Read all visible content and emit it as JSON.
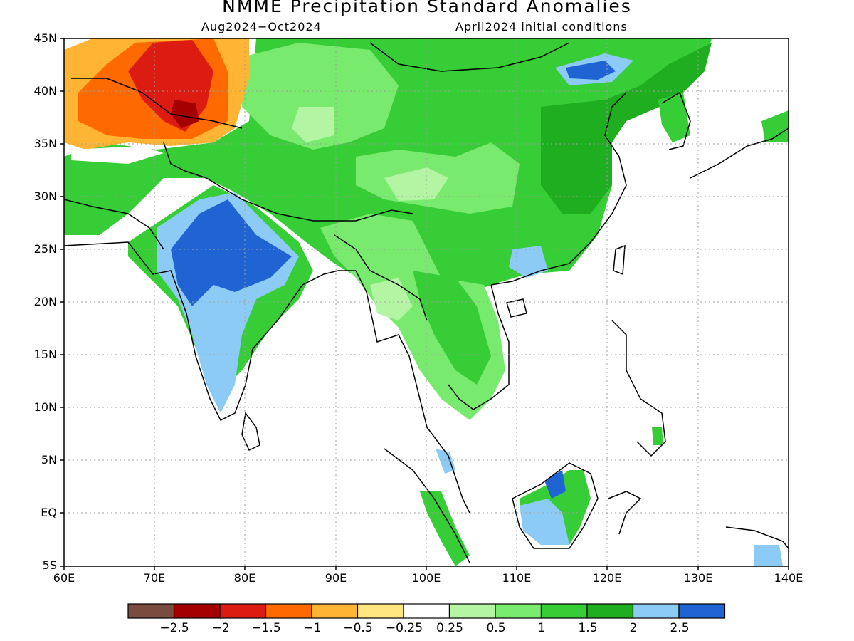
{
  "title": "NMME Precipitation Standard Anomalies",
  "period": "Aug2024−Oct2024",
  "initial_conditions": "April2024 initial conditions",
  "lat_labels": [
    "45N",
    "40N",
    "35N",
    "30N",
    "25N",
    "20N",
    "15N",
    "10N",
    "5N",
    "EQ",
    "5S"
  ],
  "lon_labels": [
    "60E",
    "70E",
    "80E",
    "90E",
    "100E",
    "110E",
    "120E",
    "130E",
    "140E"
  ],
  "colorbar": {
    "colors": [
      "#7a4b3f",
      "#a50000",
      "#dc1c13",
      "#ff6a00",
      "#ffb533",
      "#ffe680",
      "#ffffff",
      "#b4f5a4",
      "#78eb6e",
      "#37cd37",
      "#1fae1f",
      "#8ccbf5",
      "#1f64d2"
    ],
    "labels": [
      "−2.5",
      "−2",
      "−1.5",
      "−1",
      "−0.5",
      "−0.25",
      "0.25",
      "0.5",
      "1",
      "1.5",
      "2",
      "2.5"
    ]
  },
  "regions": [
    {
      "name": "north-central-asia-wet",
      "color": "#37cd37"
    },
    {
      "name": "east-china-wet",
      "color": "#1fae1f"
    },
    {
      "name": "central-asia-dry",
      "color": "#ff6a00"
    },
    {
      "name": "india-wet",
      "color": "#8ccbf5"
    },
    {
      "name": "central-india-wet",
      "color": "#1f64d2"
    },
    {
      "name": "indochina-wet",
      "color": "#78eb6e"
    },
    {
      "name": "borneo-wet",
      "color": "#8ccbf5"
    }
  ]
}
